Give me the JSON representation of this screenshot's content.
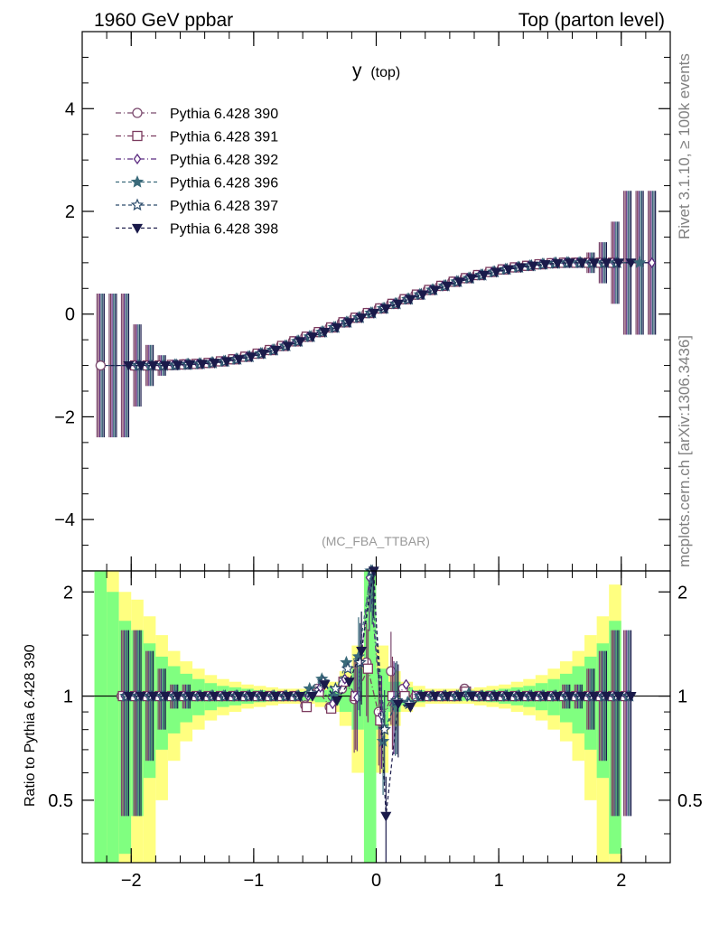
{
  "header": {
    "left": "1960 GeV ppbar",
    "right": "Top (parton level)"
  },
  "side_labels": {
    "rivet": "Rivet 3.1.10, ≥ 100k events",
    "mcplots": "mcplots.cern.ch [arXiv:1306.3436]"
  },
  "chart_data": [
    {
      "type": "line",
      "title": "y",
      "title_suffix": "(top)",
      "analysis_label": "(MC_FBA_TTBAR)",
      "xlabel": "",
      "ylabel": "",
      "xlim": [
        -2.4,
        2.4
      ],
      "ylim": [
        -5,
        5.5
      ],
      "yticks": [
        -4,
        -2,
        0,
        2,
        4
      ],
      "legend_position": "top-left",
      "x": [
        -2.25,
        -2.15,
        -2.05,
        -1.95,
        -1.85,
        -1.75,
        -1.65,
        -1.55,
        -1.45,
        -1.35,
        -1.25,
        -1.15,
        -1.05,
        -0.95,
        -0.85,
        -0.75,
        -0.65,
        -0.55,
        -0.45,
        -0.35,
        -0.25,
        -0.15,
        -0.05,
        0.05,
        0.15,
        0.25,
        0.35,
        0.45,
        0.55,
        0.65,
        0.75,
        0.85,
        0.95,
        1.05,
        1.15,
        1.25,
        1.35,
        1.45,
        1.55,
        1.65,
        1.75,
        1.85,
        1.95,
        2.05,
        2.15,
        2.25
      ],
      "y": [
        -1.0,
        -1.0,
        -1.0,
        -1.0,
        -1.0,
        -1.0,
        -0.99,
        -0.98,
        -0.97,
        -0.95,
        -0.92,
        -0.88,
        -0.83,
        -0.77,
        -0.7,
        -0.62,
        -0.53,
        -0.44,
        -0.35,
        -0.26,
        -0.16,
        -0.07,
        0.02,
        0.11,
        0.2,
        0.29,
        0.38,
        0.47,
        0.55,
        0.63,
        0.7,
        0.76,
        0.82,
        0.87,
        0.91,
        0.94,
        0.97,
        0.99,
        1.0,
        1.0,
        1.0,
        1.0,
        1.0,
        1.0,
        1.0,
        1.0
      ],
      "series": [
        {
          "name": "Pythia 6.428 390",
          "marker": "circle-open",
          "color": "#7b4a6e"
        },
        {
          "name": "Pythia 6.428 391",
          "marker": "square-open",
          "color": "#7b3a5e"
        },
        {
          "name": "Pythia 6.428 392",
          "marker": "diamond-open",
          "color": "#5b2a80"
        },
        {
          "name": "Pythia 6.428 396",
          "marker": "star-filled",
          "color": "#3a6a7a"
        },
        {
          "name": "Pythia 6.428 397",
          "marker": "star-open",
          "color": "#2a4a6a"
        },
        {
          "name": "Pythia 6.428 398",
          "marker": "triangle-down-filled",
          "color": "#1a1a4a"
        }
      ],
      "special_points": [
        {
          "series": "Pythia 6.428 390",
          "x": -2.25,
          "y": -1.0
        },
        {
          "series": "Pythia 6.428 396",
          "x": 2.15,
          "y": 1.0
        },
        {
          "series": "Pythia 6.428 392",
          "x": 2.25,
          "y": 1.0
        }
      ]
    },
    {
      "type": "line",
      "title": "",
      "xlabel": "",
      "ylabel": "Ratio to Pythia 6.428 390",
      "xlim": [
        -2.4,
        2.4
      ],
      "ylim": [
        0.33,
        2.3
      ],
      "yscale": "log",
      "yticks": [
        0.5,
        1,
        2
      ],
      "xticks": [
        -2,
        -1,
        0,
        1,
        2
      ],
      "reference": 1,
      "band_x": [
        -2.25,
        -2.15,
        -2.05,
        -1.95,
        -1.85,
        -1.75,
        -1.65,
        -1.55,
        -1.45,
        -1.35,
        -1.25,
        -1.15,
        -1.05,
        -0.95,
        -0.85,
        -0.75,
        -0.65,
        -0.55,
        -0.45,
        -0.35,
        -0.25,
        -0.15,
        -0.05,
        0.05,
        0.15,
        0.25,
        0.35,
        0.45,
        0.55,
        0.65,
        0.75,
        0.85,
        0.95,
        1.05,
        1.15,
        1.25,
        1.35,
        1.45,
        1.55,
        1.65,
        1.75,
        1.85,
        1.95
      ],
      "band_green": [
        3.0,
        1.0,
        0.65,
        0.55,
        0.42,
        0.3,
        0.22,
        0.16,
        0.12,
        0.09,
        0.07,
        0.06,
        0.05,
        0.04,
        0.035,
        0.03,
        0.03,
        0.03,
        0.04,
        0.06,
        0.1,
        0.2,
        3.0,
        0.2,
        0.1,
        0.06,
        0.04,
        0.03,
        0.03,
        0.03,
        0.03,
        0.035,
        0.04,
        0.05,
        0.06,
        0.07,
        0.09,
        0.12,
        0.16,
        0.22,
        0.3,
        0.42,
        0.65
      ],
      "band_yellow": [
        3.0,
        3.0,
        1.0,
        0.9,
        0.7,
        0.5,
        0.35,
        0.26,
        0.2,
        0.15,
        0.12,
        0.1,
        0.08,
        0.07,
        0.06,
        0.05,
        0.05,
        0.05,
        0.07,
        0.1,
        0.18,
        0.4,
        3.0,
        0.4,
        0.18,
        0.1,
        0.07,
        0.05,
        0.05,
        0.05,
        0.05,
        0.06,
        0.07,
        0.08,
        0.1,
        0.12,
        0.15,
        0.2,
        0.26,
        0.35,
        0.5,
        0.7,
        1.1
      ],
      "ratio_points": [
        {
          "x": -0.55,
          "values": [
            0.94,
            0.93,
            1.0,
            1.05,
            1.02,
            1.0
          ]
        },
        {
          "x": -0.45,
          "values": [
            1.05,
            1.03,
            1.06,
            1.12,
            1.1,
            1.08
          ]
        },
        {
          "x": -0.35,
          "values": [
            0.93,
            0.92,
            0.95,
            1.0,
            1.05,
            0.97
          ]
        },
        {
          "x": -0.25,
          "values": [
            1.05,
            1.1,
            1.12,
            1.25,
            1.2,
            1.1
          ]
        },
        {
          "x": -0.15,
          "values": [
            0.98,
            1.0,
            0.99,
            1.3,
            1.25,
            1.35
          ]
        },
        {
          "x": -0.05,
          "values": [
            1.25,
            1.2,
            2.2,
            2.5,
            2.3,
            2.4
          ]
        },
        {
          "x": 0.05,
          "values": [
            0.9,
            0.85,
            0.88,
            0.74,
            0.8,
            0.45
          ]
        },
        {
          "x": 0.15,
          "values": [
            1.18,
            1.0,
            0.97,
            0.96,
            0.97,
            0.95
          ]
        },
        {
          "x": 0.25,
          "values": [
            1.05,
            1.0,
            1.08,
            0.96,
            0.95,
            0.93
          ]
        },
        {
          "x": 0.75,
          "values": [
            1.05,
            1.03,
            1.0,
            1.02,
            1.0,
            1.0
          ]
        }
      ]
    }
  ]
}
